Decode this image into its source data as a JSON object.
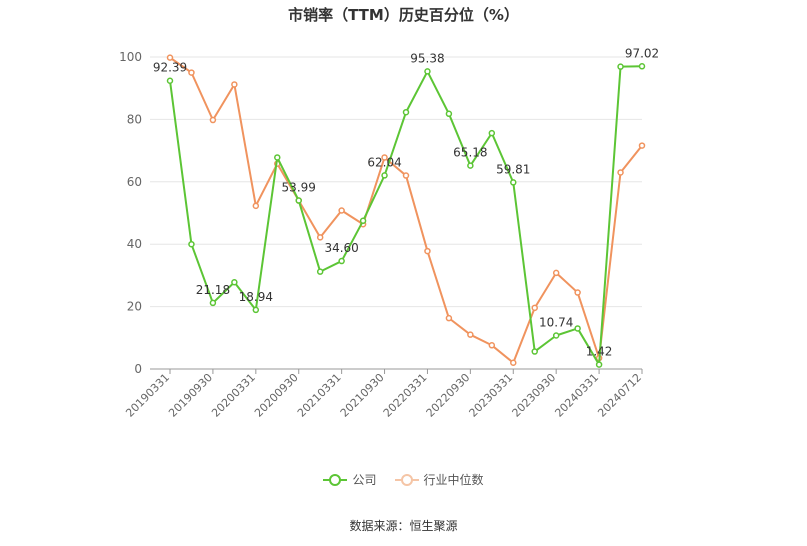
{
  "chart_data": {
    "type": "line",
    "title": "市销率（TTM）历史百分位（%）",
    "ylim": [
      0,
      100
    ],
    "yticks": [
      0,
      20,
      40,
      60,
      80,
      100
    ],
    "x_ticks": [
      "20190331",
      "20190930",
      "20200331",
      "20200930",
      "20210331",
      "20210930",
      "20220331",
      "20220930",
      "20230331",
      "20230930",
      "20240331",
      "20240712"
    ],
    "x": [
      "20190331",
      "20190630",
      "20190930",
      "20191231",
      "20200331",
      "20200630",
      "20200930",
      "20201231",
      "20210331",
      "20210630",
      "20210930",
      "20211231",
      "20220331",
      "20220630",
      "20220930",
      "20221231",
      "20230331",
      "20230630",
      "20230930",
      "20231231",
      "20240331",
      "20240630",
      "20240712"
    ],
    "grid": true,
    "legend_position": "bottom",
    "series": [
      {
        "name": "公司",
        "color": "#5cc535",
        "values": [
          92.39,
          40.0,
          21.18,
          27.8,
          18.94,
          67.8,
          53.99,
          31.2,
          34.6,
          47.5,
          62.04,
          82.3,
          95.38,
          81.8,
          65.18,
          75.6,
          59.81,
          5.6,
          10.74,
          13.0,
          1.42,
          96.9,
          97.02
        ],
        "labels": {
          "0": "92.39",
          "2": "21.18",
          "4": "18.94",
          "6": "53.99",
          "8": "34.60",
          "10": "62.04",
          "12": "95.38",
          "14": "65.18",
          "16": "59.81",
          "18": "10.74",
          "20": "1.42",
          "22": "97.02"
        }
      },
      {
        "name": "行业中位数",
        "color": "#f0935e",
        "values": [
          99.8,
          95.0,
          79.8,
          91.2,
          52.3,
          65.8,
          54.0,
          42.2,
          50.8,
          46.4,
          67.8,
          62.0,
          37.8,
          16.3,
          11.0,
          7.6,
          2.0,
          19.6,
          30.8,
          24.5,
          3.5,
          63.0,
          71.6
        ]
      }
    ]
  },
  "source": "数据来源：恒生聚源"
}
